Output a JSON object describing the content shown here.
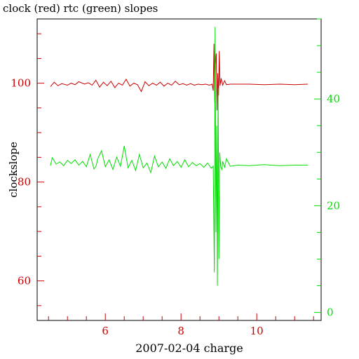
{
  "chart_data": {
    "type": "line",
    "title": "clock (red) rtc (green) slopes",
    "xlabel": "2007-02-04 charge",
    "ylabel": "clockslope",
    "xlim": [
      4.2,
      11.7
    ],
    "x_ticks_major": [
      6,
      8,
      10
    ],
    "left_axis": {
      "ylim": [
        52,
        113
      ],
      "ticks_major": [
        60,
        80,
        100
      ],
      "color": "#cc0000"
    },
    "right_axis": {
      "ylim": [
        -1.5,
        55
      ],
      "ticks_major": [
        0,
        20,
        40
      ],
      "color": "#00dd00"
    },
    "grid": false,
    "series": [
      {
        "color": "#cc0000",
        "axis": "left",
        "x": [
          4.55,
          4.65,
          4.75,
          4.85,
          5.0,
          5.1,
          5.2,
          5.3,
          5.45,
          5.55,
          5.65,
          5.75,
          5.85,
          5.95,
          6.05,
          6.15,
          6.25,
          6.35,
          6.45,
          6.55,
          6.65,
          6.75,
          6.85,
          6.95,
          7.05,
          7.15,
          7.25,
          7.35,
          7.45,
          7.55,
          7.65,
          7.75,
          7.85,
          7.95,
          8.05,
          8.15,
          8.25,
          8.35,
          8.45,
          8.55,
          8.65,
          8.75,
          8.82,
          8.85,
          8.87,
          8.89,
          8.91,
          8.93,
          8.95,
          8.97,
          8.99,
          9.01,
          9.03,
          9.06,
          9.1,
          9.15,
          9.2,
          9.3,
          9.5,
          9.8,
          10.2,
          10.6,
          11.0,
          11.35
        ],
        "values": [
          99.3,
          100.2,
          99.5,
          99.9,
          99.6,
          100.0,
          99.7,
          100.3,
          99.8,
          100.1,
          99.6,
          100.6,
          99.2,
          100.2,
          99.5,
          100.4,
          99.1,
          100.0,
          99.6,
          100.8,
          99.4,
          100.0,
          99.7,
          98.3,
          100.3,
          99.5,
          100.0,
          99.6,
          100.2,
          99.4,
          100.0,
          99.6,
          100.4,
          99.7,
          99.9,
          99.6,
          99.9,
          99.6,
          99.8,
          99.7,
          99.8,
          99.6,
          99.8,
          98.5,
          108.0,
          96.0,
          104.0,
          106.0,
          94.5,
          102.0,
          97.5,
          106.5,
          99.5,
          101.0,
          99.6,
          100.5,
          99.7,
          99.8,
          99.8,
          99.8,
          99.7,
          99.8,
          99.7,
          99.8
        ]
      },
      {
        "color": "#00dd00",
        "axis": "right",
        "x": [
          4.55,
          4.6,
          4.7,
          4.8,
          4.9,
          5.0,
          5.1,
          5.2,
          5.3,
          5.4,
          5.5,
          5.6,
          5.7,
          5.75,
          5.8,
          5.9,
          6.0,
          6.1,
          6.2,
          6.3,
          6.4,
          6.5,
          6.6,
          6.7,
          6.8,
          6.9,
          7.0,
          7.1,
          7.2,
          7.3,
          7.4,
          7.5,
          7.6,
          7.7,
          7.8,
          7.9,
          8.0,
          8.1,
          8.2,
          8.3,
          8.4,
          8.5,
          8.6,
          8.7,
          8.8,
          8.85,
          8.88,
          8.9,
          8.92,
          8.94,
          8.96,
          8.98,
          9.0,
          9.02,
          9.05,
          9.08,
          9.1,
          9.15,
          9.2,
          9.3,
          9.5,
          9.8,
          10.2,
          10.6,
          11.0,
          11.35
        ],
        "values": [
          27.5,
          29.0,
          27.8,
          28.2,
          27.5,
          28.5,
          27.9,
          28.6,
          27.6,
          28.3,
          27.3,
          29.6,
          26.9,
          27.3,
          28.8,
          30.3,
          27.3,
          28.6,
          26.8,
          29.1,
          27.4,
          31.2,
          27.1,
          28.5,
          26.6,
          29.6,
          27.1,
          28.0,
          26.2,
          29.3,
          27.3,
          28.2,
          27.0,
          28.8,
          27.5,
          28.3,
          27.2,
          28.6,
          27.3,
          28.1,
          27.5,
          27.9,
          27.2,
          28.0,
          27.0,
          27.4,
          7.5,
          53.5,
          15.0,
          35.0,
          5.0,
          42.0,
          10.0,
          30.0,
          27.2,
          26.8,
          28.3,
          27.2,
          28.8,
          27.4,
          27.6,
          27.5,
          27.7,
          27.5,
          27.6,
          27.6
        ]
      }
    ]
  }
}
